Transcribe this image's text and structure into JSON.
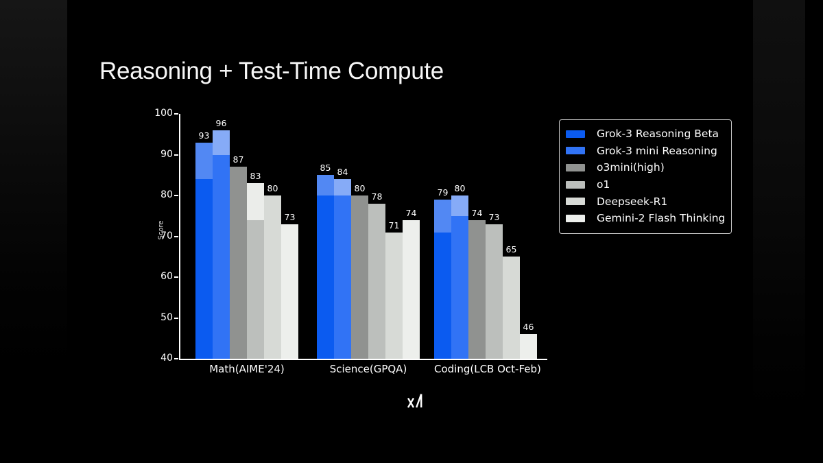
{
  "page": {
    "background": "#000000"
  },
  "title": "Reasoning + Test-Time Compute",
  "footer": {
    "logo_name": "xai-logo"
  },
  "chart_data": {
    "type": "bar",
    "title": "Reasoning + Test-Time Compute",
    "xlabel": "",
    "ylabel": "Score",
    "ylim": [
      40,
      100
    ],
    "yticks": [
      40,
      50,
      60,
      70,
      80,
      90,
      100
    ],
    "grid": false,
    "legend_position": "upper right",
    "categories": [
      "Math(AIME'24)",
      "Science(GPQA)",
      "Coding(LCB Oct-Feb)"
    ],
    "note": "Grok bars and o1 Math bar show a lighter top segment (score with test-time compute) above the solid base-score segment.",
    "series": [
      {
        "name": "Grok-3 Reasoning Beta",
        "color": "#0b5bf0",
        "light_color": "#5288f3",
        "values": [
          93,
          85,
          79
        ],
        "base_values": [
          84,
          80,
          71
        ]
      },
      {
        "name": "Grok-3 mini Reasoning",
        "color": "#3173f5",
        "light_color": "#86abf7",
        "values": [
          96,
          84,
          80
        ],
        "base_values": [
          90,
          80,
          75
        ]
      },
      {
        "name": "o3mini(high)",
        "color": "#909290",
        "light_color": null,
        "values": [
          87,
          80,
          74
        ],
        "base_values": [
          87,
          80,
          74
        ]
      },
      {
        "name": "o1",
        "color": "#bcbfbc",
        "light_color": "#ebedea",
        "values": [
          83,
          78,
          73
        ],
        "base_values": [
          74,
          78,
          73
        ]
      },
      {
        "name": "Deepseek-R1",
        "color": "#d7dad6",
        "light_color": null,
        "values": [
          80,
          71,
          65
        ],
        "base_values": [
          80,
          71,
          65
        ]
      },
      {
        "name": "Gemini-2 Flash Thinking",
        "color": "#edefec",
        "light_color": null,
        "values": [
          73,
          74,
          46
        ],
        "base_values": [
          73,
          74,
          46
        ]
      }
    ]
  }
}
